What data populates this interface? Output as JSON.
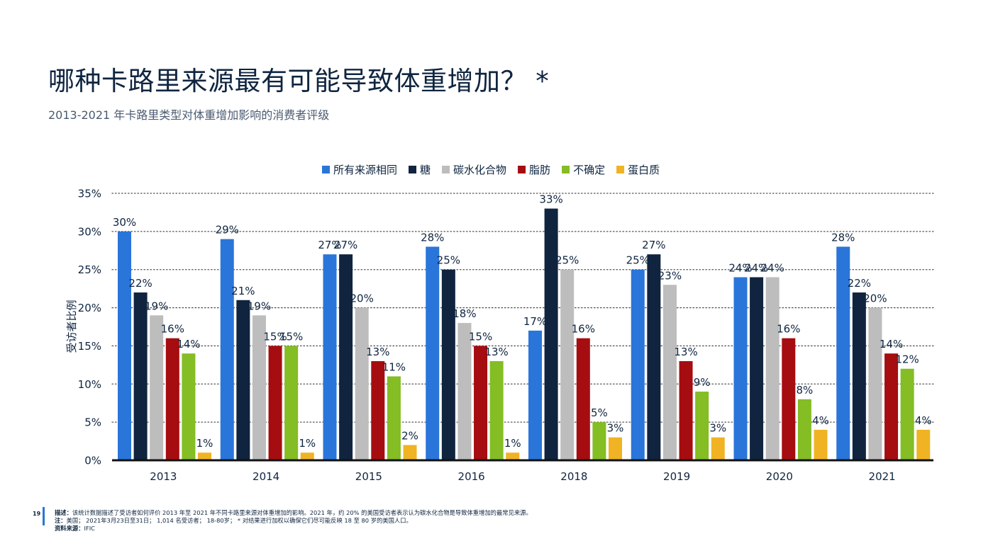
{
  "page": {
    "title": "哪种卡路里来源最有可能导致体重增加？ *",
    "subtitle": "2013-2021 年卡路里类型对体重增加影响的消费者评级",
    "page_number": "19"
  },
  "footer": {
    "line1_label": "描述：",
    "line1_text": "该统计数据描述了受访者如何评价 2013 年至 2021 年不同卡路里来源对体重增加的影响。2021 年，约 20% 的美国受访者表示认为碳水化合物是导致体重增加的最常见来源。",
    "line2_label": "注：",
    "line2_text": "美国； 2021年3月23日至31日； 1,014 名受访者； 18-80岁； * 对结果进行加权以确保它们尽可能反映 18 至 80 岁的美国人口。",
    "line3_label": "资料来源：",
    "line3_text": "IFIC"
  },
  "chart_data": {
    "type": "bar",
    "categories": [
      "2013",
      "2014",
      "2015",
      "2016",
      "2018",
      "2019",
      "2020",
      "2021"
    ],
    "series": [
      {
        "name": "所有来源相同",
        "color": "#2a75d9",
        "values": [
          30,
          29,
          27,
          28,
          17,
          25,
          24,
          28
        ]
      },
      {
        "name": "糖",
        "color": "#10243f",
        "values": [
          22,
          21,
          27,
          25,
          33,
          27,
          24,
          22
        ]
      },
      {
        "name": "碳水化合物",
        "color": "#bdbdbd",
        "values": [
          19,
          19,
          20,
          18,
          25,
          23,
          24,
          20
        ]
      },
      {
        "name": "脂肪",
        "color": "#a50d10",
        "values": [
          16,
          15,
          13,
          15,
          16,
          13,
          16,
          14
        ]
      },
      {
        "name": "不确定",
        "color": "#84bd24",
        "values": [
          14,
          15,
          11,
          13,
          5,
          9,
          8,
          12
        ]
      },
      {
        "name": "蛋白质",
        "color": "#f0b323",
        "values": [
          1,
          1,
          2,
          1,
          3,
          3,
          4,
          4
        ]
      }
    ],
    "ylabel": "受访者比例",
    "xlabel": "",
    "ylim": [
      0,
      35
    ],
    "yticks": [
      0,
      5,
      10,
      15,
      20,
      25,
      30,
      35
    ],
    "tick_format": "%",
    "value_suffix": "%",
    "grid": "dotted horizontal",
    "legend": "top-center"
  }
}
